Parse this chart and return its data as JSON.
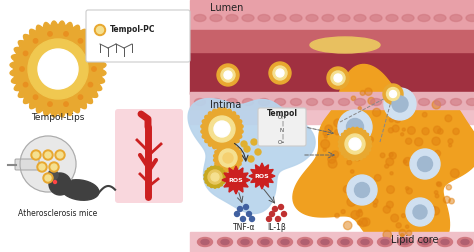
{
  "bg_color": "#ffffff",
  "liposome_outer_color": "#e8a830",
  "liposome_inner_color": "#f5d870",
  "liposome_core_color": "#ffffff",
  "intima_cell_color": "#b8d4ec",
  "lipid_core_color": "#f0a020",
  "cell_nucleus_color": "#a0b8d0",
  "cell_body_color": "#d0e0f0",
  "ros_color": "#cc2020",
  "ros_text": "#ffffff",
  "tempol_box_color": "#f0f0f0",
  "tempol_box_edge": "#cccccc",
  "tempol_pc_label": "Tempol-PC",
  "tempol_lips_label": "Tempol-Lips",
  "atherosclerosis_label": "Atherosclerosis mice",
  "lumen_label": "Lumen",
  "intima_label": "Intima",
  "tempol_label": "Tempol",
  "lipid_core_label": "Lipid core",
  "tnf_label": "TNF-α",
  "il_label": "IL-1β",
  "dot_color_blue": "#4060a0",
  "dot_color_red": "#c03030",
  "lumen_dark": "#a03040",
  "lumen_pink": "#e8a0a8",
  "intima_pink": "#e8b0b8",
  "adv_pink": "#f0c0c8",
  "artery_red": "#cc2020",
  "mouse_dark": "#404040"
}
